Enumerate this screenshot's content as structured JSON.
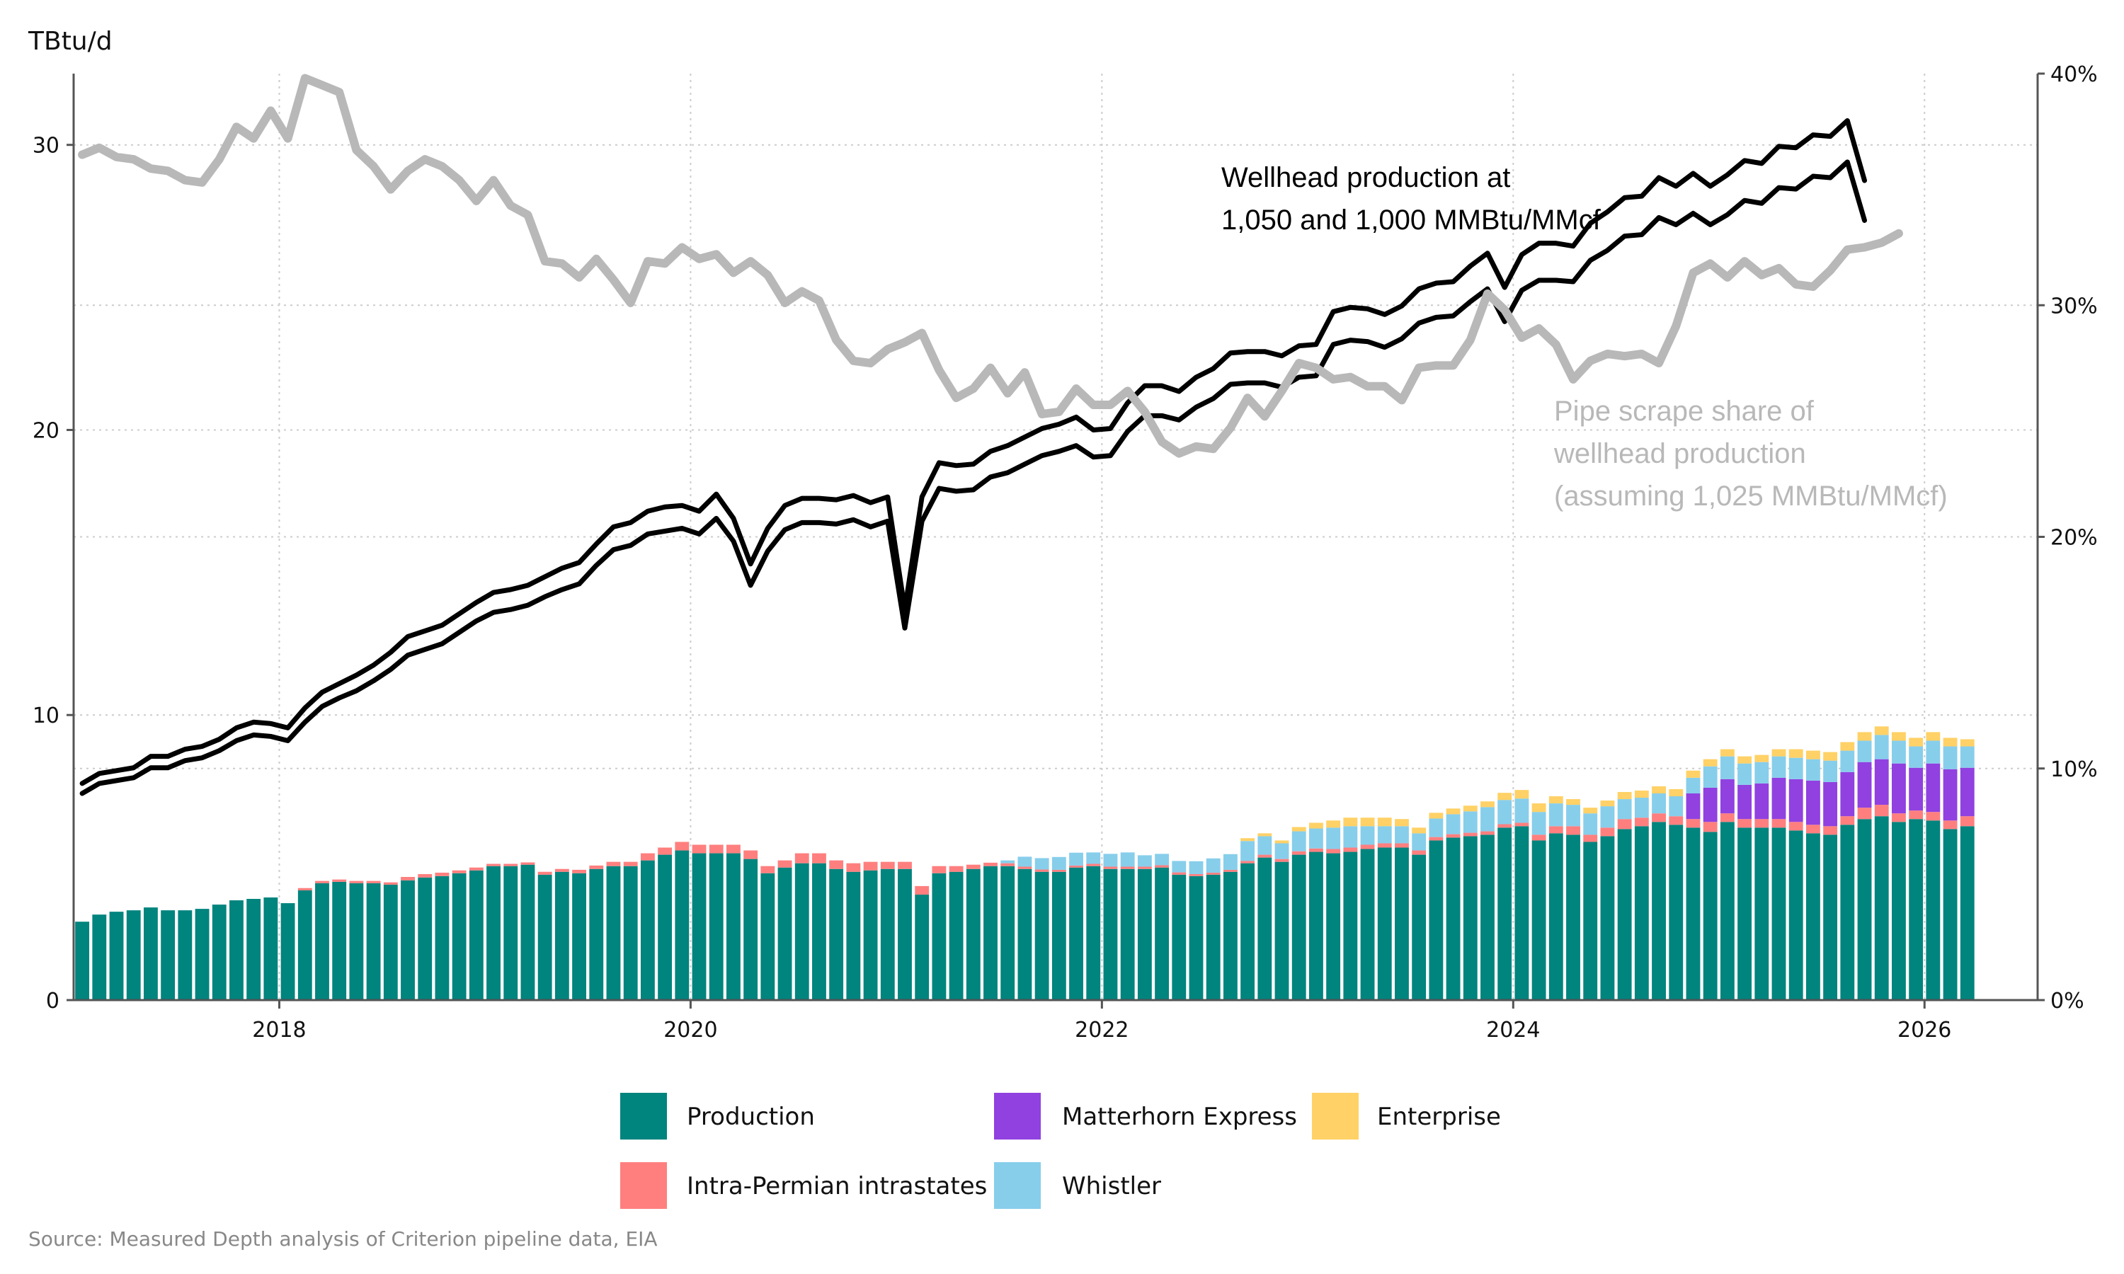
{
  "chart_data": {
    "type": "bar",
    "ylabel": "TBtu/d",
    "ylim": [
      0,
      32.5
    ],
    "y_ticks": [
      0,
      10,
      20,
      30
    ],
    "y2lim": [
      0,
      0.4
    ],
    "y2_ticks": [
      0,
      0.1,
      0.2,
      0.3,
      0.4
    ],
    "y2_tick_labels": [
      "0%",
      "10%",
      "20%",
      "30%",
      "40%"
    ],
    "x_range_years": [
      2017,
      2026.55
    ],
    "x_ticks": [
      2018,
      2020,
      2022,
      2024,
      2026
    ],
    "x_tick_labels": [
      "2018",
      "2020",
      "2022",
      "2024",
      "2026"
    ],
    "grid": true,
    "start_month": "2017-01",
    "stacked": true,
    "series": [
      {
        "name": "Production",
        "color": "#00847e",
        "values": [
          2.75,
          3.0,
          3.1,
          3.15,
          3.25,
          3.15,
          3.15,
          3.2,
          3.35,
          3.5,
          3.55,
          3.6,
          3.4,
          3.85,
          4.1,
          4.15,
          4.1,
          4.1,
          4.05,
          4.2,
          4.3,
          4.35,
          4.45,
          4.55,
          4.7,
          4.7,
          4.75,
          4.4,
          4.5,
          4.45,
          4.6,
          4.7,
          4.7,
          4.9,
          5.1,
          5.25,
          5.15,
          5.15,
          5.15,
          4.95,
          4.45,
          4.65,
          4.8,
          4.8,
          4.6,
          4.5,
          4.55,
          4.6,
          4.6,
          3.7,
          4.45,
          4.5,
          4.6,
          4.7,
          4.7,
          4.6,
          4.5,
          4.5,
          4.65,
          4.7,
          4.6,
          4.6,
          4.6,
          4.65,
          4.4,
          4.35,
          4.4,
          4.5,
          4.8,
          5.0,
          4.85,
          5.1,
          5.2,
          5.15,
          5.2,
          5.3,
          5.35,
          5.35,
          5.1,
          5.6,
          5.7,
          5.75,
          5.8,
          6.05,
          6.1,
          5.6,
          5.85,
          5.8,
          5.55,
          5.75,
          6.0,
          6.1,
          6.25,
          6.15,
          6.05,
          5.9,
          6.25,
          6.05,
          6.05,
          6.05,
          5.95,
          5.85,
          5.8,
          6.15,
          6.35,
          6.45,
          6.25,
          6.35,
          6.3,
          6.0,
          6.1
        ]
      },
      {
        "name": "Intra-Permian intrastates",
        "color": "#ff7f7f",
        "values": [
          0,
          0,
          0,
          0,
          0,
          0,
          0,
          0,
          0,
          0,
          0,
          0,
          0,
          0.08,
          0.08,
          0.08,
          0.08,
          0.08,
          0.08,
          0.12,
          0.12,
          0.12,
          0.1,
          0.1,
          0.08,
          0.08,
          0.08,
          0.1,
          0.1,
          0.12,
          0.12,
          0.15,
          0.15,
          0.25,
          0.25,
          0.3,
          0.3,
          0.3,
          0.3,
          0.3,
          0.25,
          0.25,
          0.35,
          0.35,
          0.3,
          0.3,
          0.3,
          0.25,
          0.25,
          0.3,
          0.25,
          0.2,
          0.15,
          0.12,
          0.1,
          0.08,
          0.08,
          0.07,
          0.07,
          0.08,
          0.08,
          0.08,
          0.08,
          0.08,
          0.08,
          0.07,
          0.07,
          0.07,
          0.08,
          0.1,
          0.1,
          0.12,
          0.12,
          0.15,
          0.15,
          0.15,
          0.15,
          0.15,
          0.15,
          0.12,
          0.12,
          0.12,
          0.12,
          0.12,
          0.12,
          0.2,
          0.25,
          0.3,
          0.25,
          0.3,
          0.35,
          0.3,
          0.3,
          0.3,
          0.3,
          0.35,
          0.3,
          0.3,
          0.3,
          0.3,
          0.3,
          0.3,
          0.3,
          0.3,
          0.4,
          0.4,
          0.3,
          0.3,
          0.3,
          0.3,
          0.35
        ]
      },
      {
        "name": "Matterhorn Express",
        "color": "#9041e0",
        "values": [
          0,
          0,
          0,
          0,
          0,
          0,
          0,
          0,
          0,
          0,
          0,
          0,
          0,
          0,
          0,
          0,
          0,
          0,
          0,
          0,
          0,
          0,
          0,
          0,
          0,
          0,
          0,
          0,
          0,
          0,
          0,
          0,
          0,
          0,
          0,
          0,
          0,
          0,
          0,
          0,
          0,
          0,
          0,
          0,
          0,
          0,
          0,
          0,
          0,
          0,
          0,
          0,
          0,
          0,
          0,
          0,
          0,
          0,
          0,
          0,
          0,
          0,
          0,
          0,
          0,
          0,
          0,
          0,
          0,
          0,
          0,
          0,
          0,
          0,
          0,
          0,
          0,
          0,
          0,
          0,
          0,
          0,
          0,
          0,
          0,
          0,
          0,
          0,
          0,
          0,
          0,
          0,
          0,
          0,
          0.9,
          1.2,
          1.2,
          1.2,
          1.25,
          1.45,
          1.5,
          1.55,
          1.55,
          1.55,
          1.6,
          1.6,
          1.75,
          1.5,
          1.7,
          1.8,
          1.7
        ]
      },
      {
        "name": "Whistler",
        "color": "#87ceeb",
        "values": [
          0,
          0,
          0,
          0,
          0,
          0,
          0,
          0,
          0,
          0,
          0,
          0,
          0,
          0,
          0,
          0,
          0,
          0,
          0,
          0,
          0,
          0,
          0,
          0,
          0,
          0,
          0,
          0,
          0,
          0,
          0,
          0,
          0,
          0,
          0,
          0,
          0,
          0,
          0,
          0,
          0,
          0,
          0,
          0,
          0,
          0,
          0,
          0,
          0,
          0,
          0,
          0,
          0,
          0,
          0.1,
          0.35,
          0.4,
          0.45,
          0.45,
          0.4,
          0.45,
          0.5,
          0.4,
          0.4,
          0.4,
          0.45,
          0.5,
          0.55,
          0.7,
          0.65,
          0.55,
          0.7,
          0.7,
          0.75,
          0.75,
          0.65,
          0.6,
          0.6,
          0.6,
          0.65,
          0.7,
          0.75,
          0.85,
          0.85,
          0.85,
          0.8,
          0.8,
          0.75,
          0.75,
          0.75,
          0.7,
          0.7,
          0.7,
          0.7,
          0.55,
          0.75,
          0.8,
          0.75,
          0.75,
          0.75,
          0.75,
          0.75,
          0.75,
          0.75,
          0.75,
          0.85,
          0.8,
          0.75,
          0.8,
          0.8,
          0.75
        ]
      },
      {
        "name": "Enterprise",
        "color": "#ffd166",
        "values": [
          0,
          0,
          0,
          0,
          0,
          0,
          0,
          0,
          0,
          0,
          0,
          0,
          0,
          0,
          0,
          0,
          0,
          0,
          0,
          0,
          0,
          0,
          0,
          0,
          0,
          0,
          0,
          0,
          0,
          0,
          0,
          0,
          0,
          0,
          0,
          0,
          0,
          0,
          0,
          0,
          0,
          0,
          0,
          0,
          0,
          0,
          0,
          0,
          0,
          0,
          0,
          0,
          0,
          0,
          0,
          0,
          0,
          0,
          0,
          0,
          0,
          0,
          0,
          0,
          0,
          0,
          0,
          0,
          0.1,
          0.1,
          0.1,
          0.15,
          0.2,
          0.25,
          0.3,
          0.3,
          0.3,
          0.25,
          0.2,
          0.2,
          0.2,
          0.2,
          0.2,
          0.25,
          0.3,
          0.3,
          0.25,
          0.2,
          0.2,
          0.2,
          0.25,
          0.25,
          0.25,
          0.25,
          0.25,
          0.25,
          0.25,
          0.25,
          0.25,
          0.25,
          0.3,
          0.3,
          0.3,
          0.3,
          0.3,
          0.3,
          0.3,
          0.3,
          0.3,
          0.3,
          0.25
        ]
      }
    ],
    "lines": [
      {
        "name": "Wellhead production at 1,050 MMBtu/MMcf",
        "color": "#000000",
        "axis": "left",
        "values": [
          7.6,
          7.95,
          8.05,
          8.15,
          8.55,
          8.55,
          8.8,
          8.9,
          9.15,
          9.55,
          9.75,
          9.7,
          9.55,
          10.25,
          10.8,
          11.1,
          11.4,
          11.75,
          12.2,
          12.75,
          12.95,
          13.15,
          13.55,
          13.95,
          14.3,
          14.4,
          14.55,
          14.85,
          15.15,
          15.35,
          16.0,
          16.6,
          16.75,
          17.15,
          17.3,
          17.35,
          17.15,
          17.75,
          16.9,
          15.3,
          16.55,
          17.35,
          17.6,
          17.6,
          17.55,
          17.7,
          17.45,
          17.65,
          13.7,
          17.65,
          18.85,
          18.75,
          18.8,
          19.25,
          19.45,
          19.75,
          20.05,
          20.2,
          20.45,
          20.0,
          20.05,
          20.95,
          21.55,
          21.55,
          21.35,
          21.85,
          22.15,
          22.7,
          22.75,
          22.75,
          22.6,
          22.95,
          23.0,
          24.15,
          24.3,
          24.25,
          24.05,
          24.35,
          24.95,
          25.15,
          25.2,
          25.75,
          26.2,
          25.0,
          26.15,
          26.55,
          26.55,
          26.45,
          27.25,
          27.65,
          28.15,
          28.2,
          28.85,
          28.55,
          29.0,
          28.55,
          28.95,
          29.45,
          29.35,
          29.95,
          29.9,
          30.35,
          30.3,
          30.85,
          28.75
        ]
      },
      {
        "name": "Wellhead production at 1,000 MMBtu/MMcf",
        "color": "#000000",
        "axis": "left",
        "values": [
          7.25,
          7.6,
          7.7,
          7.8,
          8.15,
          8.15,
          8.4,
          8.5,
          8.75,
          9.1,
          9.3,
          9.25,
          9.1,
          9.75,
          10.3,
          10.6,
          10.85,
          11.2,
          11.6,
          12.1,
          12.3,
          12.5,
          12.9,
          13.3,
          13.6,
          13.7,
          13.85,
          14.15,
          14.4,
          14.6,
          15.25,
          15.8,
          15.95,
          16.35,
          16.45,
          16.55,
          16.35,
          16.9,
          16.1,
          14.55,
          15.75,
          16.5,
          16.75,
          16.75,
          16.7,
          16.85,
          16.6,
          16.8,
          13.05,
          16.8,
          17.95,
          17.85,
          17.9,
          18.35,
          18.5,
          18.8,
          19.1,
          19.25,
          19.45,
          19.05,
          19.1,
          19.95,
          20.5,
          20.5,
          20.35,
          20.8,
          21.1,
          21.6,
          21.65,
          21.65,
          21.5,
          21.85,
          21.9,
          23.0,
          23.15,
          23.1,
          22.9,
          23.2,
          23.75,
          23.95,
          24.0,
          24.5,
          24.95,
          23.8,
          24.9,
          25.25,
          25.25,
          25.2,
          25.95,
          26.3,
          26.8,
          26.85,
          27.45,
          27.2,
          27.6,
          27.2,
          27.55,
          28.05,
          27.95,
          28.5,
          28.45,
          28.9,
          28.85,
          29.4,
          27.35
        ]
      },
      {
        "name": "Pipe scrape share of wellhead production (assuming 1,025 MMBtu/MMcf)",
        "color": "#b8b8b8",
        "axis": "right",
        "values": [
          0.365,
          0.368,
          0.364,
          0.363,
          0.359,
          0.358,
          0.354,
          0.353,
          0.363,
          0.377,
          0.372,
          0.384,
          0.372,
          0.398,
          0.395,
          0.392,
          0.367,
          0.36,
          0.35,
          0.358,
          0.363,
          0.36,
          0.354,
          0.345,
          0.354,
          0.343,
          0.339,
          0.319,
          0.318,
          0.312,
          0.32,
          0.311,
          0.301,
          0.319,
          0.318,
          0.325,
          0.32,
          0.322,
          0.314,
          0.319,
          0.313,
          0.301,
          0.306,
          0.302,
          0.285,
          0.276,
          0.275,
          0.281,
          0.284,
          0.288,
          0.272,
          0.26,
          0.264,
          0.273,
          0.262,
          0.271,
          0.253,
          0.254,
          0.264,
          0.257,
          0.257,
          0.263,
          0.254,
          0.241,
          0.236,
          0.239,
          0.238,
          0.247,
          0.26,
          0.252,
          0.263,
          0.275,
          0.273,
          0.268,
          0.269,
          0.265,
          0.265,
          0.259,
          0.273,
          0.274,
          0.274,
          0.285,
          0.305,
          0.298,
          0.286,
          0.29,
          0.283,
          0.268,
          0.276,
          0.279,
          0.278,
          0.279,
          0.275,
          0.291,
          0.314,
          0.318,
          0.312,
          0.319,
          0.313,
          0.316,
          0.309,
          0.308,
          0.315,
          0.324,
          0.325,
          0.327,
          0.331
        ]
      }
    ],
    "annotations": {
      "wellhead_line1": "Wellhead production at",
      "wellhead_line2": "1,050 and 1,000 MMBtu/MMcf",
      "scrape_line1": "Pipe scrape share of",
      "scrape_line2": "wellhead production",
      "scrape_line3": "(assuming 1,025 MMBtu/MMcf)"
    },
    "legend_placement": "bottom",
    "source": "Source: Measured Depth analysis of Criterion pipeline data, EIA"
  }
}
